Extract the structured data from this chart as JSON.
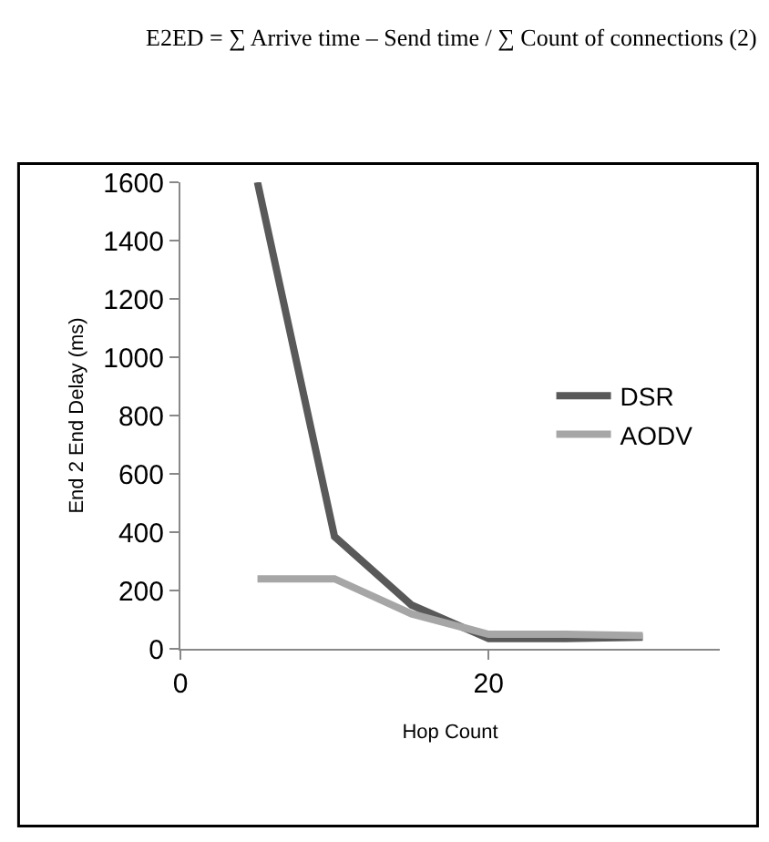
{
  "chart_data": {
    "type": "line",
    "xlabel": "Hop Count",
    "ylabel": "End 2 End Delay (ms)",
    "annotations": [
      "E2ED = ∑ Arrive time – Send time / ∑ Count of connections (2)"
    ],
    "x": [
      5,
      10,
      15,
      20,
      25,
      30
    ],
    "series": [
      {
        "name": "DSR",
        "color": "#595959",
        "values": [
          1600,
          385,
          150,
          35,
          35,
          40
        ]
      },
      {
        "name": "AODV",
        "color": "#a6a6a6",
        "values": [
          240,
          240,
          120,
          50,
          50,
          45
        ]
      }
    ],
    "xlim": [
      0,
      35
    ],
    "xticks": [
      0,
      20
    ],
    "ylim": [
      0,
      1600
    ],
    "yticks": [
      0,
      200,
      400,
      600,
      800,
      1000,
      1200,
      1400,
      1600
    ],
    "grid": false,
    "legend": "right",
    "marker": "none",
    "line_style": "solid"
  }
}
